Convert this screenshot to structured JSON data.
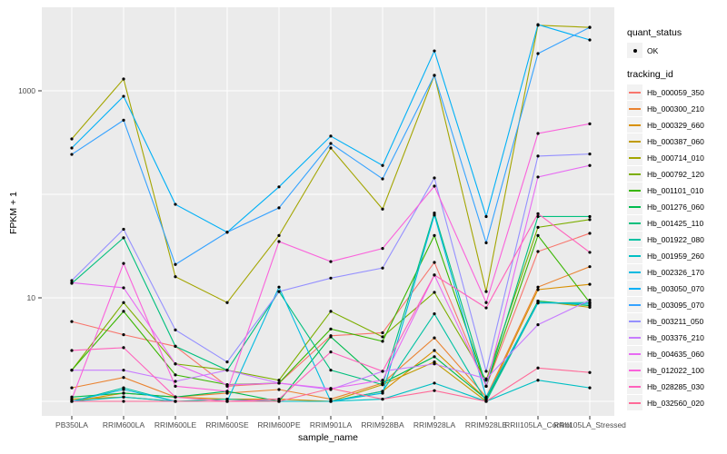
{
  "figure": {
    "panel_bg": "#EBEBEB",
    "gridline_color": "#FFFFFF",
    "tick_color": "#333333",
    "tick_label_color": "#4D4D4D",
    "legend_key_bg": "#F2F2F2",
    "y_axis_title": "FPKM + 1",
    "x_axis_title": "sample_name",
    "legend": {
      "quant_status_title": "quant_status",
      "quant_status_items": [
        {
          "label": "OK"
        }
      ],
      "tracking_id_title": "tracking_id"
    }
  },
  "chart_data": {
    "type": "line",
    "x_label": "sample_name",
    "y_label": "FPKM + 1",
    "y_scale": "log10",
    "y_ticks": [
      {
        "value": 10,
        "label": "10"
      },
      {
        "value": 1000,
        "label": "1000"
      }
    ],
    "y_gridlines": [
      1,
      10,
      100,
      1000
    ],
    "ylim": [
      1,
      6400
    ],
    "point_color": "#000000",
    "x": [
      "PB350LA",
      "RRIM600LA",
      "RRIM600LE",
      "RRIM600SE",
      "RRIM600PE",
      "RRIM901LA",
      "RRIM928BA",
      "RRIM928LA",
      "RRIM928LE",
      "RRII105LA_Control",
      "RRII105LA_Stressed"
    ],
    "series": [
      {
        "name": "Hb_000059_350",
        "color": "#F8766D",
        "values": [
          5.9,
          4.4,
          3.4,
          1.4,
          1.5,
          4.3,
          4.6,
          22,
          1.4,
          28,
          42
        ]
      },
      {
        "name": "Hb_000300_210",
        "color": "#EA8331",
        "values": [
          1.35,
          1.7,
          1.1,
          1.2,
          1.3,
          1.05,
          1.5,
          4.1,
          1.1,
          12.7,
          20
        ]
      },
      {
        "name": "Hb_000329_660",
        "color": "#D89000",
        "values": [
          1.0,
          1.2,
          1.1,
          1.05,
          1.05,
          1.0,
          1.25,
          3.1,
          1.05,
          12,
          13.5
        ]
      },
      {
        "name": "Hb_000387_060",
        "color": "#C09B00",
        "values": [
          1.05,
          1.1,
          1.0,
          1.0,
          1.0,
          1.0,
          1.45,
          2.4,
          1.0,
          9.3,
          8.1
        ]
      },
      {
        "name": "Hb_000714_010",
        "color": "#A3A500",
        "values": [
          343,
          1300,
          16,
          9,
          40,
          280,
          72,
          1410,
          11.5,
          4300,
          4100
        ]
      },
      {
        "name": "Hb_000792_120",
        "color": "#7CAE00",
        "values": [
          2.0,
          9.0,
          2.3,
          2.0,
          1.6,
          7.4,
          4.2,
          11.3,
          1.6,
          48,
          57
        ]
      },
      {
        "name": "Hb_001101_010",
        "color": "#39B600",
        "values": [
          2.0,
          7.4,
          1.8,
          1.45,
          1.5,
          5.0,
          3.8,
          40,
          1.4,
          40,
          9.0
        ]
      },
      {
        "name": "Hb_001276_060",
        "color": "#00BB4E",
        "values": [
          1.1,
          1.2,
          1.1,
          1.25,
          1.0,
          4.2,
          1.5,
          2.7,
          1.05,
          9.3,
          8.4
        ]
      },
      {
        "name": "Hb_001425_110",
        "color": "#00BF7D",
        "values": [
          13.8,
          38,
          3.4,
          2.0,
          11.5,
          2.0,
          1.45,
          66,
          1.4,
          61,
          61
        ]
      },
      {
        "name": "Hb_001922_080",
        "color": "#00C1A3",
        "values": [
          1.0,
          1.35,
          1.0,
          1.05,
          1.0,
          1.0,
          1.25,
          7.0,
          1.0,
          8.9,
          9.0
        ]
      },
      {
        "name": "Hb_001959_260",
        "color": "#00BFC4",
        "values": [
          1.0,
          1.1,
          1.0,
          1.0,
          1.0,
          1.0,
          1.05,
          1.5,
          1.0,
          1.6,
          1.35
        ]
      },
      {
        "name": "Hb_002326_170",
        "color": "#00BAE0",
        "values": [
          1.0,
          1.3,
          1.0,
          1.0,
          12.7,
          1.0,
          1.2,
          63,
          1.1,
          9.0,
          8.7
        ]
      },
      {
        "name": "Hb_003050_070",
        "color": "#00B0F6",
        "values": [
          280,
          885,
          80,
          43,
          118,
          365,
          190,
          2430,
          61,
          4365,
          3100
        ]
      },
      {
        "name": "Hb_003095_070",
        "color": "#35A2FF",
        "values": [
          243,
          520,
          21,
          43,
          74,
          310,
          141,
          1410,
          34,
          2290,
          4100
        ]
      },
      {
        "name": "Hb_003211_050",
        "color": "#9590FF",
        "values": [
          14.7,
          46,
          4.9,
          2.4,
          11.5,
          15.5,
          19.4,
          144,
          1.95,
          234,
          245
        ]
      },
      {
        "name": "Hb_003376_210",
        "color": "#C77CFF",
        "values": [
          2.0,
          2.0,
          1.56,
          2.0,
          1.5,
          1.3,
          1.95,
          2.3,
          1.65,
          5.5,
          9.5
        ]
      },
      {
        "name": "Hb_004635_060",
        "color": "#E76BF3",
        "values": [
          14.0,
          12.5,
          2.3,
          1.44,
          1.5,
          1.33,
          1.6,
          16.6,
          1.4,
          147,
          190
        ]
      },
      {
        "name": "Hb_012022_100",
        "color": "#FA62DB",
        "values": [
          1.05,
          21.5,
          1.4,
          1.25,
          35,
          22.4,
          30,
          120,
          9.0,
          387,
          480
        ]
      },
      {
        "name": "Hb_028285_030",
        "color": "#FF62BC",
        "values": [
          3.1,
          3.3,
          1.1,
          1.0,
          1.05,
          3.0,
          1.95,
          16.6,
          8.0,
          65,
          27.5
        ]
      },
      {
        "name": "Hb_032560_020",
        "color": "#FF6A98",
        "values": [
          1.0,
          1.0,
          1.0,
          1.0,
          1.0,
          1.33,
          1.05,
          1.27,
          1.0,
          2.1,
          1.9
        ]
      }
    ],
    "legend_position": "right",
    "grid": true
  }
}
